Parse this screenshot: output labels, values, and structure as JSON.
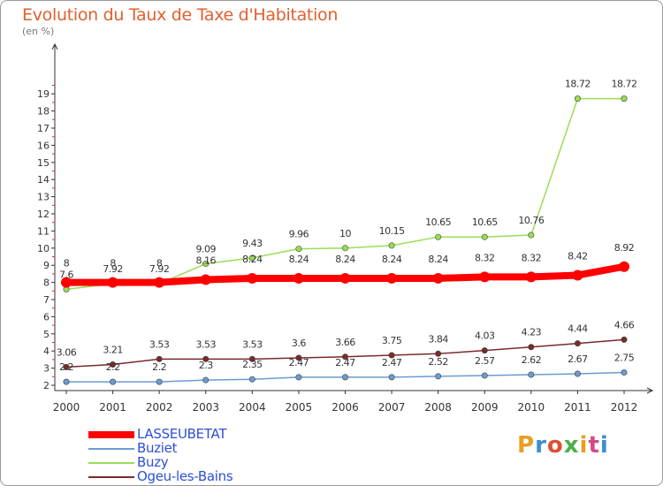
{
  "chart_data": {
    "type": "line",
    "title": "Evolution du Taux de Taxe d'Habitation",
    "subtitle": "(en %)",
    "categories": [
      "2000",
      "2001",
      "2002",
      "2003",
      "2004",
      "2005",
      "2006",
      "2007",
      "2008",
      "2009",
      "2010",
      "2011",
      "2012"
    ],
    "ylim": [
      2,
      19.5
    ],
    "yticks": [
      "2",
      "3",
      "4",
      "5",
      "6",
      "7",
      "8",
      "9",
      "10",
      "11",
      "12",
      "13",
      "14",
      "15",
      "16",
      "17",
      "18",
      "19"
    ],
    "grid": false,
    "legend_position": "bottom-left",
    "series": [
      {
        "name": "LASSEUBETAT",
        "color": "#ff0000",
        "values": [
          8,
          8,
          8,
          8.16,
          8.24,
          8.24,
          8.24,
          8.24,
          8.24,
          8.32,
          8.32,
          8.42,
          8.92
        ],
        "labels": [
          "8",
          "8",
          "8",
          "8.16",
          "8.24",
          "8.24",
          "8.24",
          "8.24",
          "8.24",
          "8.32",
          "8.32",
          "8.42",
          "8.92"
        ]
      },
      {
        "name": "Buziet",
        "color": "#6a9cd0",
        "values": [
          2.2,
          2.2,
          2.2,
          2.3,
          2.35,
          2.47,
          2.47,
          2.47,
          2.52,
          2.57,
          2.62,
          2.67,
          2.75
        ],
        "labels": [
          "2.2",
          "2.2",
          "2.2",
          "2.3",
          "2.35",
          "2.47",
          "2.47",
          "2.47",
          "2.52",
          "2.57",
          "2.62",
          "2.67",
          "2.75"
        ]
      },
      {
        "name": "Buzy",
        "color": "#99dd55",
        "values": [
          7.6,
          7.92,
          7.92,
          9.09,
          9.43,
          9.96,
          10,
          10.15,
          10.65,
          10.65,
          10.76,
          18.72,
          18.72
        ],
        "labels": [
          "7.6",
          "7.92",
          "7.92",
          "9.09",
          "9.43",
          "9.96",
          "10",
          "10.15",
          "10.65",
          "10.65",
          "10.76",
          "18.72",
          "18.72"
        ]
      },
      {
        "name": "Ogeu-les-Bains",
        "color": "#7a2a2a",
        "values": [
          3.06,
          3.21,
          3.53,
          3.53,
          3.53,
          3.6,
          3.66,
          3.75,
          3.84,
          4.03,
          4.23,
          4.44,
          4.66
        ],
        "labels": [
          "3.06",
          "3.21",
          "3.53",
          "3.53",
          "3.53",
          "3.6",
          "3.66",
          "3.75",
          "3.84",
          "4.03",
          "4.23",
          "4.44",
          "4.66"
        ]
      }
    ]
  },
  "logo": {
    "letters": [
      "P",
      "r",
      "o",
      "x",
      "i",
      "t",
      "i"
    ],
    "colors": [
      "#e8a020",
      "#3a8fd0",
      "#e05030",
      "#4ab04a",
      "#e8a020",
      "#d04a8a",
      "#3a8fd0"
    ]
  }
}
